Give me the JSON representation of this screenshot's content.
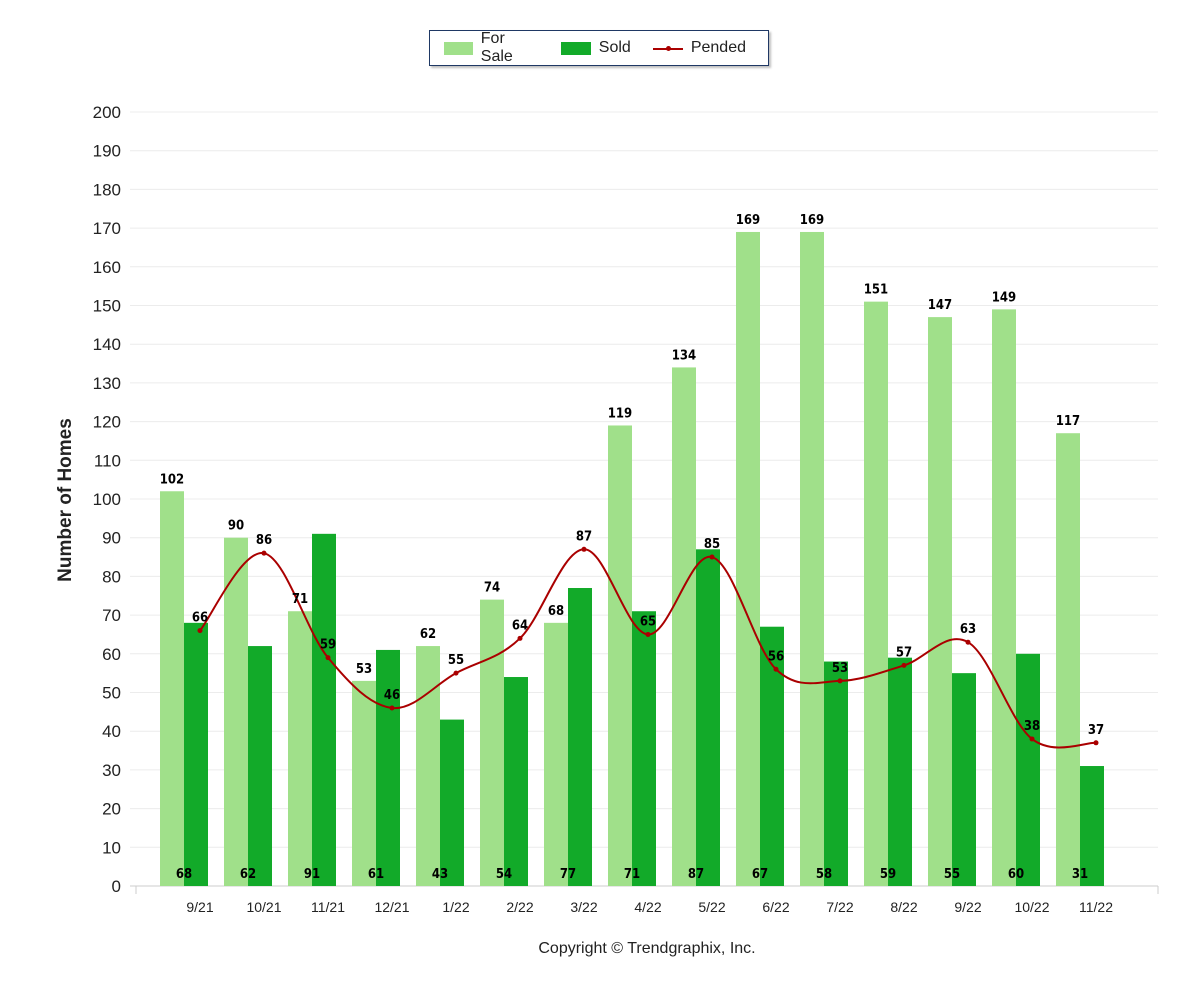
{
  "chart_data": {
    "type": "bar",
    "ylabel": "Number of Homes",
    "xlabel": "",
    "ylim": [
      0,
      200
    ],
    "ytick_step": 10,
    "grid": true,
    "legend_position": "top-center",
    "categories": [
      "9/21",
      "10/21",
      "11/21",
      "12/21",
      "1/22",
      "2/22",
      "3/22",
      "4/22",
      "5/22",
      "6/22",
      "7/22",
      "8/22",
      "9/22",
      "10/22",
      "11/22"
    ],
    "series": [
      {
        "name": "For Sale",
        "type": "bar",
        "color": "#a0e08a",
        "values": [
          102,
          90,
          71,
          53,
          62,
          74,
          68,
          119,
          134,
          169,
          169,
          151,
          147,
          149,
          117
        ]
      },
      {
        "name": "Sold",
        "type": "bar",
        "color": "#12aa29",
        "values": [
          68,
          62,
          91,
          61,
          43,
          54,
          77,
          71,
          87,
          67,
          58,
          59,
          55,
          60,
          31
        ]
      },
      {
        "name": "Pended",
        "type": "line",
        "color": "#aa0000",
        "values": [
          66,
          86,
          59,
          46,
          55,
          64,
          87,
          65,
          85,
          56,
          53,
          57,
          63,
          38,
          37
        ]
      }
    ]
  },
  "footer": {
    "copyright": "Copyright © Trendgraphix, Inc."
  }
}
